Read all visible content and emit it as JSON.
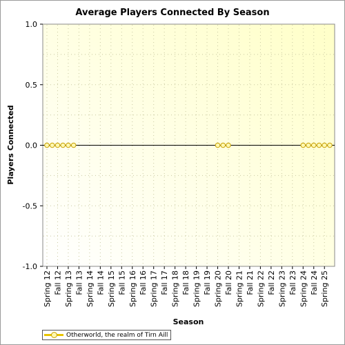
{
  "chart_data": {
    "type": "line",
    "title": "Average Players Connected By Season",
    "xlabel": "Season",
    "ylabel": "Players Connected",
    "ylim": [
      -1.0,
      1.0
    ],
    "yticks": [
      "1.0",
      "0.5",
      "0.0",
      "-0.5",
      "-1.0"
    ],
    "ytick_values": [
      1.0,
      0.5,
      0.0,
      -0.5,
      -1.0
    ],
    "grid": true,
    "legend_position": "bottom-left",
    "categories": [
      "Spring 12",
      "Fall 12",
      "Spring 13",
      "Fall 13",
      "Spring 14",
      "Fall 14",
      "Spring 15",
      "Fall 15",
      "Spring 16",
      "Fall 16",
      "Spring 17",
      "Fall 17",
      "Spring 18",
      "Fall 18",
      "Spring 19",
      "Fall 19",
      "Spring 20",
      "Fall 20",
      "Spring 21",
      "Fall 21",
      "Spring 22",
      "Fall 22",
      "Spring 23",
      "Fall 23",
      "Spring 24",
      "Fall 24",
      "Spring 25"
    ],
    "series": [
      {
        "name": "Otherworld, the realm of Tirn Aill",
        "color": "#e8c400",
        "marker_points": [
          {
            "x": 0,
            "y": 0
          },
          {
            "x": 0.5,
            "y": 0
          },
          {
            "x": 1,
            "y": 0
          },
          {
            "x": 1.5,
            "y": 0
          },
          {
            "x": 2,
            "y": 0
          },
          {
            "x": 2.5,
            "y": 0
          },
          {
            "x": 16,
            "y": 0
          },
          {
            "x": 16.5,
            "y": 0
          },
          {
            "x": 17,
            "y": 0
          },
          {
            "x": 24,
            "y": 0
          },
          {
            "x": 24.5,
            "y": 0
          },
          {
            "x": 25,
            "y": 0
          },
          {
            "x": 25.5,
            "y": 0
          },
          {
            "x": 26,
            "y": 0
          },
          {
            "x": 26.5,
            "y": 0
          }
        ]
      }
    ]
  }
}
